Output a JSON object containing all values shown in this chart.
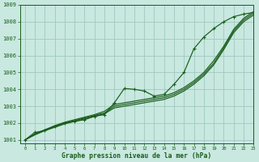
{
  "title": "Graphe pression niveau de la mer (hPa)",
  "bg_color": "#c8e8e0",
  "grid_color": "#a0c8c0",
  "line_color": "#1a5c1a",
  "xlim": [
    -0.5,
    23
  ],
  "ylim": [
    1000.8,
    1009.0
  ],
  "yticks": [
    1001,
    1002,
    1003,
    1004,
    1005,
    1006,
    1007,
    1008,
    1009
  ],
  "xticks": [
    0,
    1,
    2,
    3,
    4,
    5,
    6,
    7,
    8,
    9,
    10,
    11,
    12,
    13,
    14,
    15,
    16,
    17,
    18,
    19,
    20,
    21,
    22,
    23
  ],
  "x": [
    0,
    1,
    2,
    3,
    4,
    5,
    6,
    7,
    8,
    9,
    10,
    11,
    12,
    13,
    14,
    15,
    16,
    17,
    18,
    19,
    20,
    21,
    22,
    23
  ],
  "line_marker": [
    1001.0,
    1001.45,
    1001.55,
    1001.8,
    1002.0,
    1002.1,
    1002.2,
    1002.4,
    1002.5,
    1003.2,
    1004.05,
    1004.0,
    1003.9,
    1003.6,
    1003.7,
    1004.3,
    1005.0,
    1006.4,
    1007.1,
    1007.6,
    1008.0,
    1008.3,
    1008.45,
    1008.55
  ],
  "line_s1": [
    1001.0,
    1001.35,
    1001.6,
    1001.85,
    1002.05,
    1002.2,
    1002.35,
    1002.5,
    1002.7,
    1003.1,
    1003.2,
    1003.3,
    1003.4,
    1003.5,
    1003.6,
    1003.8,
    1004.1,
    1004.5,
    1005.0,
    1005.7,
    1006.55,
    1007.55,
    1008.2,
    1008.6
  ],
  "line_s2": [
    1001.0,
    1001.35,
    1001.6,
    1001.8,
    1002.0,
    1002.15,
    1002.3,
    1002.45,
    1002.6,
    1003.0,
    1003.1,
    1003.2,
    1003.3,
    1003.4,
    1003.5,
    1003.7,
    1004.0,
    1004.4,
    1004.9,
    1005.55,
    1006.45,
    1007.45,
    1008.1,
    1008.5
  ],
  "line_s3": [
    1001.0,
    1001.3,
    1001.55,
    1001.75,
    1001.95,
    1002.1,
    1002.25,
    1002.4,
    1002.55,
    1002.9,
    1003.0,
    1003.1,
    1003.2,
    1003.3,
    1003.4,
    1003.6,
    1003.9,
    1004.3,
    1004.8,
    1005.45,
    1006.35,
    1007.35,
    1008.0,
    1008.4
  ]
}
